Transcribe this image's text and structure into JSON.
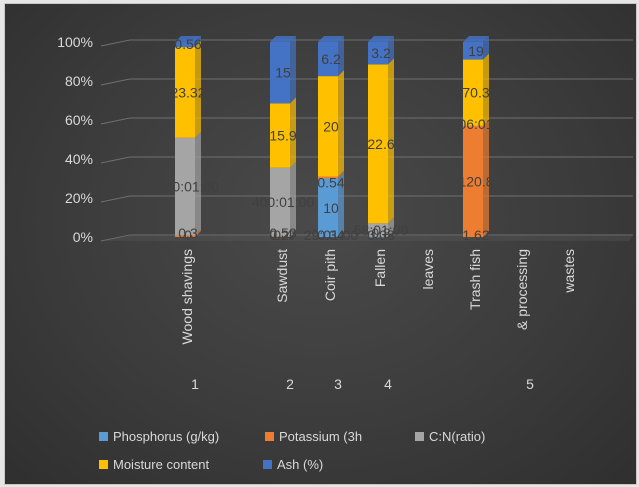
{
  "chart_data": {
    "type": "bar",
    "stacked": "percent",
    "categories": [
      "Wood shavings",
      "Sawdust",
      "Coir pith",
      "Fallen",
      "leaves",
      "Trash fish",
      "& processing",
      "wastes"
    ],
    "group_numbers": [
      {
        "label": "1",
        "category": 0
      },
      {
        "label": "2",
        "category": 1
      },
      {
        "label": "3",
        "category": 2
      },
      {
        "label": "4",
        "category": 3
      },
      {
        "label": "5",
        "category": 6
      }
    ],
    "ylim": [
      0,
      100
    ],
    "yticks": [
      "0%",
      "20%",
      "40%",
      "60%",
      "80%",
      "100%"
    ],
    "grid": true,
    "legend_position": "bottom",
    "series": [
      {
        "name": "Phosphorus  (g/kg)",
        "color": "#5b9bd5",
        "values": [
          0,
          0.4,
          10,
          0.08,
          0,
          0,
          0,
          0
        ],
        "labels": [
          "0",
          "0.4",
          "10",
          "0.08",
          "",
          "",
          "",
          ""
        ]
      },
      {
        "name": "Potassium (3h",
        "color": "#ed7d31",
        "values": [
          0.9,
          0.27,
          0.34,
          0,
          0,
          120.8,
          0,
          0
        ],
        "labels": [
          "",
          "0.27",
          "0.34",
          "",
          "",
          "120.8",
          "",
          ""
        ]
      },
      {
        "name": "C:N(ratio)",
        "color": "#a5a5a5",
        "values": [
          600.01,
          400.01,
          29.01,
          58.01,
          0,
          1.62,
          0,
          0
        ],
        "labels": [
          "600:01:00",
          "400:01:00",
          "29:01:00",
          "58:01:00",
          "",
          "1.62",
          "",
          ""
        ]
      },
      {
        "name": "Moisture content",
        "color": "#ffc000",
        "values": [
          23.32,
          15.9,
          20,
          22.6,
          0,
          70.3,
          0,
          0
        ],
        "labels": [
          "23.32",
          "15.9",
          "20",
          "22.6",
          "",
          "70.3",
          "",
          ""
        ]
      },
      {
        "name": "Ash (%)",
        "color": "#4472c4",
        "values": [
          0.56,
          15,
          6.2,
          3.2,
          0,
          19,
          0,
          0
        ],
        "labels": [
          "0.56",
          "15",
          "6.2",
          "3.2",
          "",
          "19",
          "",
          ""
        ]
      }
    ],
    "shown_percent": [
      [
        0,
        0.4,
        30,
        0.1,
        0,
        0,
        0,
        0
      ],
      [
        0.9,
        0.1,
        1,
        0,
        0,
        57,
        0,
        0
      ],
      [
        50,
        35,
        0,
        6.9,
        0,
        0,
        0,
        0
      ],
      [
        46.5,
        33,
        51.5,
        81.5,
        0,
        34,
        0,
        0
      ],
      [
        2.6,
        31.5,
        17.5,
        11.5,
        0,
        9,
        0,
        0
      ]
    ],
    "extra_labels": [
      {
        "text": "06:01",
        "category": 5,
        "percent": 58
      },
      {
        "text": "0.54",
        "category": 2,
        "percent": 28
      },
      {
        "text": "0.3",
        "category": 0,
        "percent": 2
      },
      {
        "text": "0.53",
        "category": 1,
        "percent": 2
      },
      {
        "text": "0.8",
        "category": 3,
        "percent": 2
      }
    ]
  }
}
